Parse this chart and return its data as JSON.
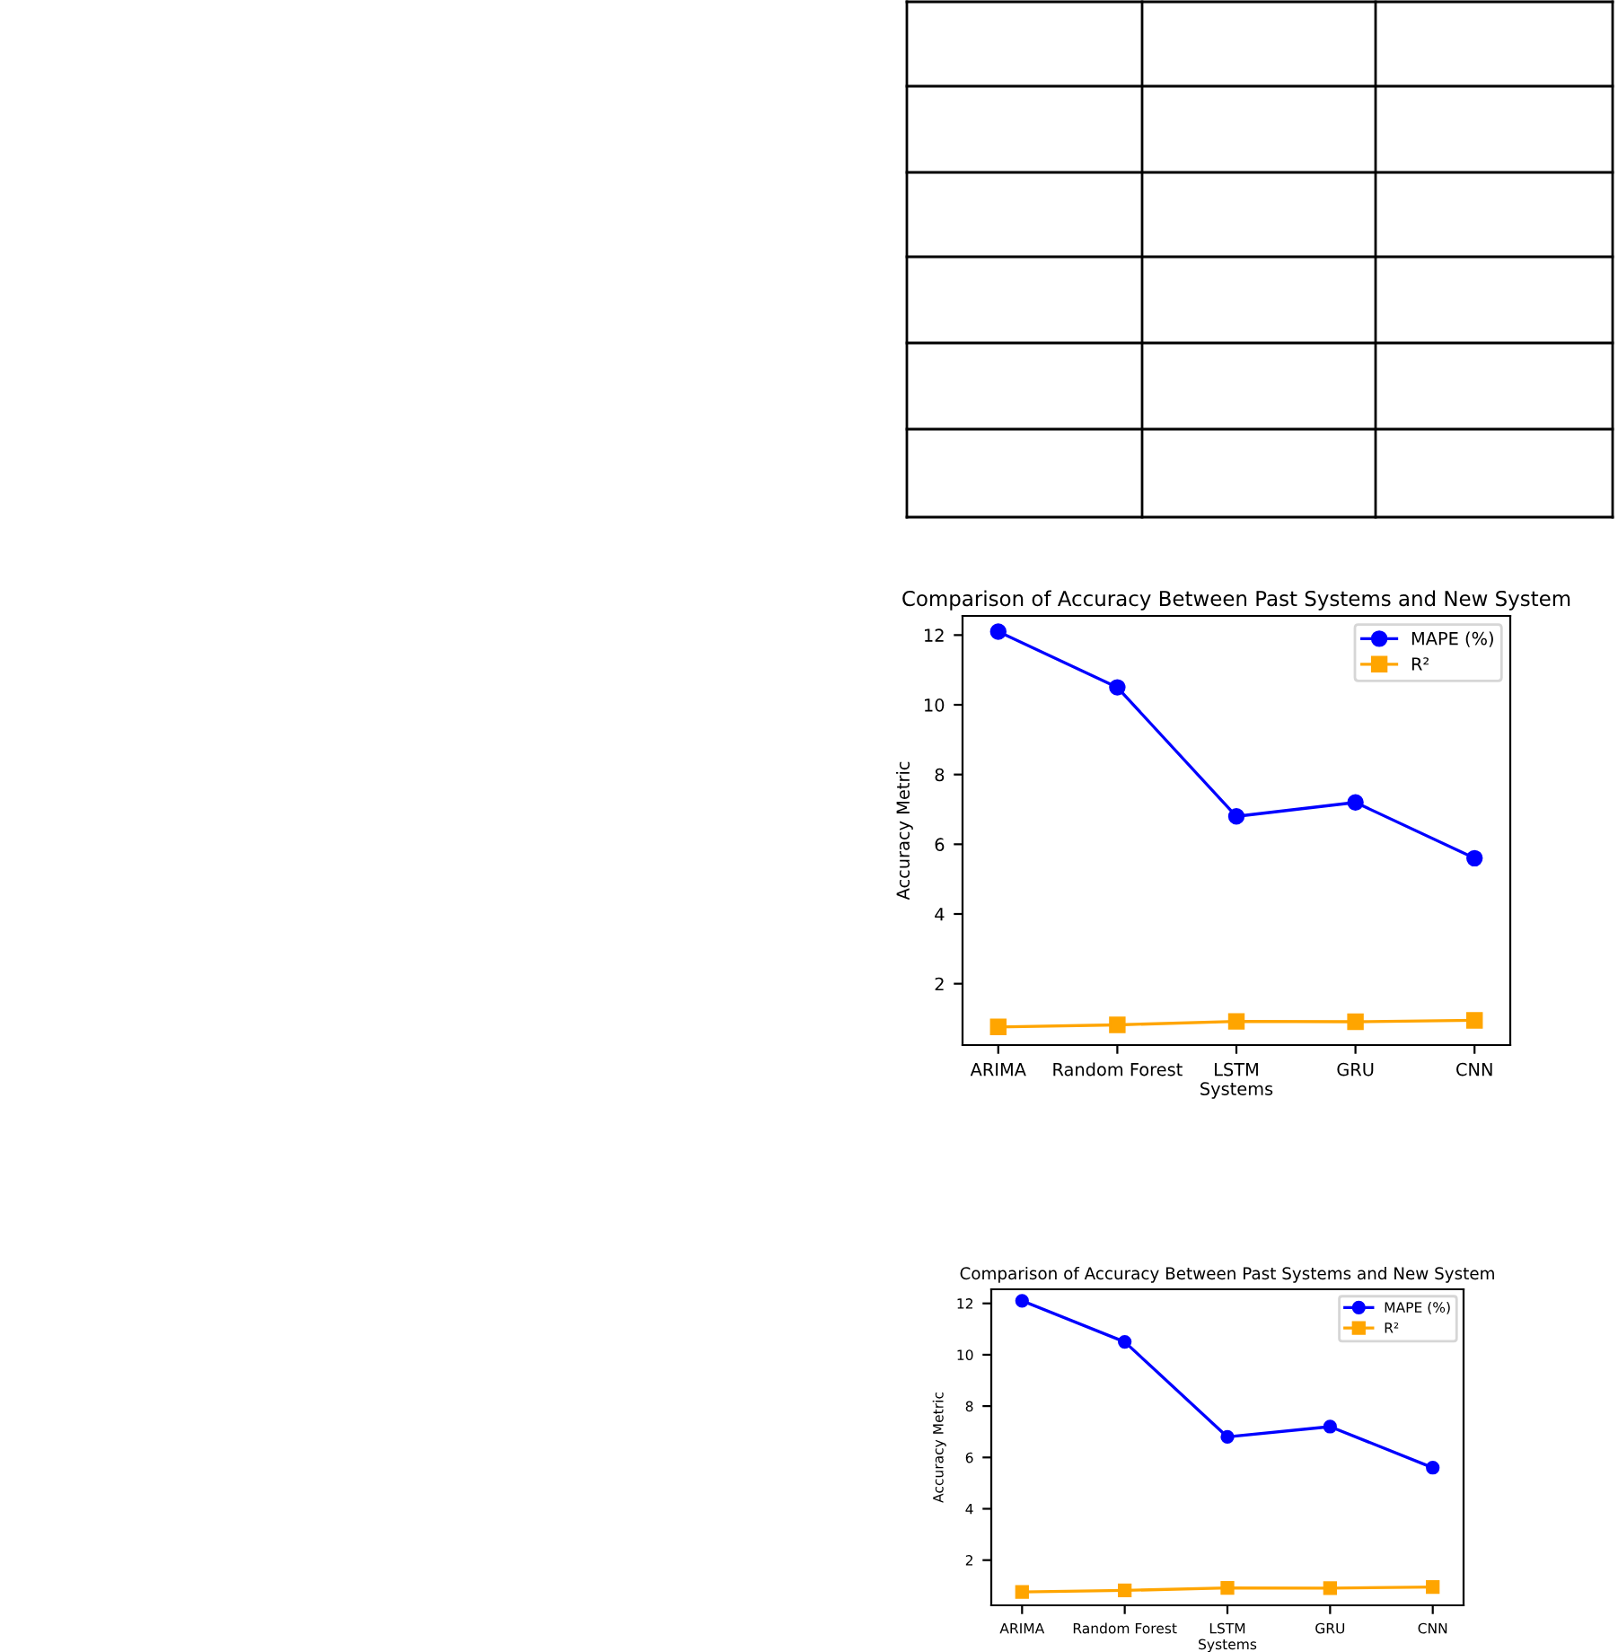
{
  "chart_data": [
    {
      "type": "line",
      "title": "Comparison of Accuracy Between Past Systems and New System",
      "xlabel": "Systems",
      "ylabel": "Accuracy Metric",
      "categories": [
        "ARIMA",
        "Random Forest",
        "LSTM",
        "GRU",
        "CNN"
      ],
      "series": [
        {
          "name": "MAPE (%)",
          "color": "#0000ff",
          "marker": "circle",
          "values": [
            12.1,
            10.5,
            6.8,
            7.2,
            5.6
          ]
        },
        {
          "name": "R²",
          "color": "#ffa500",
          "marker": "square",
          "values": [
            0.76,
            0.82,
            0.92,
            0.91,
            0.95
          ]
        }
      ],
      "ylim": [
        0.24,
        12.55
      ],
      "yticks": [
        2,
        4,
        6,
        8,
        10,
        12
      ],
      "legend": "top right",
      "grid": false
    },
    {
      "type": "line",
      "title": "Comparison of Accuracy Between Past Systems and New System",
      "xlabel": "Systems",
      "ylabel": "Accuracy Metric",
      "categories": [
        "ARIMA",
        "Random Forest",
        "LSTM",
        "GRU",
        "CNN"
      ],
      "series": [
        {
          "name": "MAPE (%)",
          "color": "#0000ff",
          "marker": "circle",
          "values": [
            12.1,
            10.5,
            6.8,
            7.2,
            5.6
          ]
        },
        {
          "name": "R²",
          "color": "#ffa500",
          "marker": "square",
          "values": [
            0.76,
            0.82,
            0.92,
            0.91,
            0.95
          ]
        }
      ],
      "ylim": [
        0.24,
        12.55
      ],
      "yticks": [
        2,
        4,
        6,
        8,
        10,
        12
      ],
      "legend": "top right",
      "grid": false
    }
  ]
}
